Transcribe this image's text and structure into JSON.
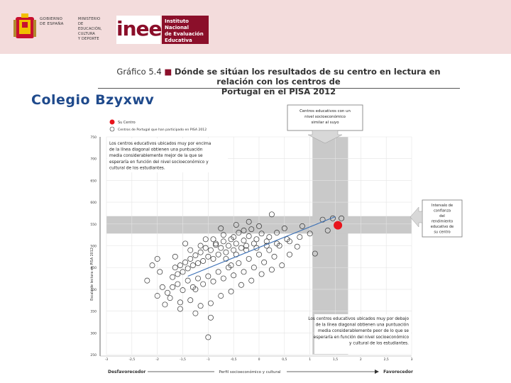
{
  "header": {
    "gov_line1": "GOBIERNO",
    "gov_line2": "DE ESPAÑA",
    "min_line1": "MINISTERIO",
    "min_line2": "DE EDUCACIÓN, CULTURA",
    "min_line3": "Y DEPORTE",
    "inee_logo": "inee",
    "inee_line1": "Instituto Nacional",
    "inee_line2": "de Evaluación",
    "inee_line3": "Educativa"
  },
  "figure": {
    "label": "Gráfico 5.4",
    "title_part1": "Dónde se sitúan los resultados de su centro en lectura en relación con los centros de",
    "title_part2": "Portugal en el PISA 2012"
  },
  "school_name": "Colegio Bzyxwv",
  "callouts": {
    "top": "Centros educativos con un nivel socioeconómico similar al suyo",
    "right": "Intervalo de confianza del rendimiento educativo de su centro",
    "upper_left": "Los centros educativos ubicados muy por encima de la línea diagonal obtienen una puntuación media considerablemente mejor de la que se esperaría en función del nivel socioeconómico y cultural de los estudiantes.",
    "lower_right": "Los centros educativos ubicados muy por debajo de la línea diagonal obtienen una puntuación media considerablemente peor de lo que se esperaría en función del nivel socioeconómico y cultural de los estudiantes."
  },
  "colors": {
    "own_school": "#e8141c",
    "trend": "#3a6fb5",
    "band": "#c9c9c9",
    "brand": "#8b0f2a"
  },
  "chart_data": {
    "type": "scatter",
    "title": "Dónde se sitúan los resultados de su centro en lectura en relación con los centros de Portugal en el PISA 2012",
    "xlabel": "Perfil socioeconómico y cultural",
    "ylabel": "Escala de lectura en PISA 2012",
    "x_left_label": "Desfavorecedor",
    "x_right_label": "Favorecedor",
    "xlim": [
      -3.0,
      3.0
    ],
    "ylim": [
      250,
      750
    ],
    "x_ticks": [
      "-3",
      "-2,5",
      "-2",
      "-1,5",
      "-1",
      "-0,5",
      "0",
      "0,5",
      "1",
      "1,5",
      "2",
      "2,5",
      "3"
    ],
    "y_ticks": [
      "250",
      "300",
      "350",
      "400",
      "450",
      "500",
      "550",
      "600",
      "650",
      "700",
      "750"
    ],
    "legend": [
      {
        "name": "Su Centro",
        "marker": "filled-red"
      },
      {
        "name": "Centros de Portugal que han participado en PISA 2012",
        "marker": "open-circle"
      }
    ],
    "own_school": {
      "x": 1.55,
      "y": 547
    },
    "x_band": [
      1.05,
      1.75
    ],
    "y_band": [
      528,
      568
    ],
    "trend_line": {
      "x": [
        -1.4,
        1.5
      ],
      "y": [
        430,
        567
      ]
    },
    "series": [
      {
        "name": "Centros de Portugal",
        "points": [
          [
            1.45,
            563
          ],
          [
            1.62,
            563
          ],
          [
            1.25,
            560
          ],
          [
            0.25,
            572
          ],
          [
            1.35,
            535
          ],
          [
            0.85,
            545
          ],
          [
            0.5,
            540
          ],
          [
            0.35,
            530
          ],
          [
            0.2,
            520
          ],
          [
            0.15,
            510
          ],
          [
            0.05,
            528
          ],
          [
            -0.05,
            515
          ],
          [
            -0.1,
            505
          ],
          [
            -0.2,
            522
          ],
          [
            -0.25,
            500
          ],
          [
            -0.3,
            512
          ],
          [
            -0.35,
            495
          ],
          [
            -0.4,
            530
          ],
          [
            -0.45,
            505
          ],
          [
            -0.5,
            490
          ],
          [
            -0.55,
            515
          ],
          [
            -0.6,
            500
          ],
          [
            -0.65,
            485
          ],
          [
            -0.7,
            510
          ],
          [
            -0.75,
            495
          ],
          [
            -0.8,
            480
          ],
          [
            -0.85,
            502
          ],
          [
            -0.9,
            470
          ],
          [
            -0.95,
            490
          ],
          [
            -1.0,
            475
          ],
          [
            -1.05,
            495
          ],
          [
            -1.1,
            465
          ],
          [
            -1.15,
            485
          ],
          [
            -1.2,
            460
          ],
          [
            -1.25,
            478
          ],
          [
            -1.3,
            455
          ],
          [
            -1.35,
            470
          ],
          [
            -1.4,
            448
          ],
          [
            -1.45,
            462
          ],
          [
            -1.5,
            440
          ],
          [
            -1.55,
            455
          ],
          [
            -1.6,
            435
          ],
          [
            -1.65,
            450
          ],
          [
            -1.7,
            428
          ],
          [
            -1.4,
            420
          ],
          [
            -1.2,
            425
          ],
          [
            -1.0,
            430
          ],
          [
            -0.8,
            440
          ],
          [
            -0.6,
            450
          ],
          [
            -0.4,
            460
          ],
          [
            -0.2,
            470
          ],
          [
            0.0,
            480
          ],
          [
            0.2,
            490
          ],
          [
            0.4,
            500
          ],
          [
            0.6,
            510
          ],
          [
            0.8,
            520
          ],
          [
            1.0,
            528
          ],
          [
            1.1,
            482
          ],
          [
            0.6,
            480
          ],
          [
            0.3,
            475
          ],
          [
            0.1,
            462
          ],
          [
            -0.1,
            450
          ],
          [
            -0.3,
            440
          ],
          [
            -0.5,
            432
          ],
          [
            -0.7,
            425
          ],
          [
            -0.9,
            418
          ],
          [
            -1.1,
            412
          ],
          [
            -1.3,
            405
          ],
          [
            -1.5,
            398
          ],
          [
            -1.6,
            412
          ],
          [
            -1.8,
            392
          ],
          [
            -1.9,
            405
          ],
          [
            -2.0,
            385
          ],
          [
            -1.75,
            380
          ],
          [
            -1.55,
            370
          ],
          [
            -1.35,
            375
          ],
          [
            -1.15,
            362
          ],
          [
            -0.95,
            368
          ],
          [
            -0.75,
            385
          ],
          [
            -0.55,
            395
          ],
          [
            -0.35,
            410
          ],
          [
            -0.15,
            420
          ],
          [
            0.05,
            435
          ],
          [
            0.25,
            445
          ],
          [
            0.45,
            455
          ],
          [
            -1.25,
            345
          ],
          [
            -0.95,
            335
          ],
          [
            -1.55,
            355
          ],
          [
            -1.85,
            365
          ],
          [
            -1.7,
            405
          ],
          [
            -0.65,
            470
          ],
          [
            -0.45,
            480
          ],
          [
            -0.25,
            490
          ],
          [
            -0.05,
            495
          ],
          [
            0.15,
            500
          ],
          [
            0.35,
            505
          ],
          [
            0.55,
            515
          ],
          [
            0.75,
            498
          ],
          [
            -0.85,
            505
          ],
          [
            -1.05,
            515
          ],
          [
            -0.75,
            540
          ],
          [
            -0.45,
            548
          ],
          [
            -0.15,
            538
          ],
          [
            -1.15,
            500
          ],
          [
            -1.35,
            490
          ],
          [
            -1.45,
            505
          ],
          [
            -0.9,
            515
          ],
          [
            -0.7,
            525
          ],
          [
            -0.5,
            520
          ],
          [
            -0.3,
            535
          ],
          [
            -2.0,
            470
          ],
          [
            -2.1,
            455
          ],
          [
            -1.95,
            440
          ],
          [
            -2.2,
            420
          ],
          [
            -1.65,
            475
          ],
          [
            -1.0,
            290
          ],
          [
            -1.25,
            400
          ],
          [
            -0.55,
            455
          ],
          [
            0.0,
            545
          ],
          [
            -0.2,
            555
          ]
        ]
      }
    ]
  }
}
